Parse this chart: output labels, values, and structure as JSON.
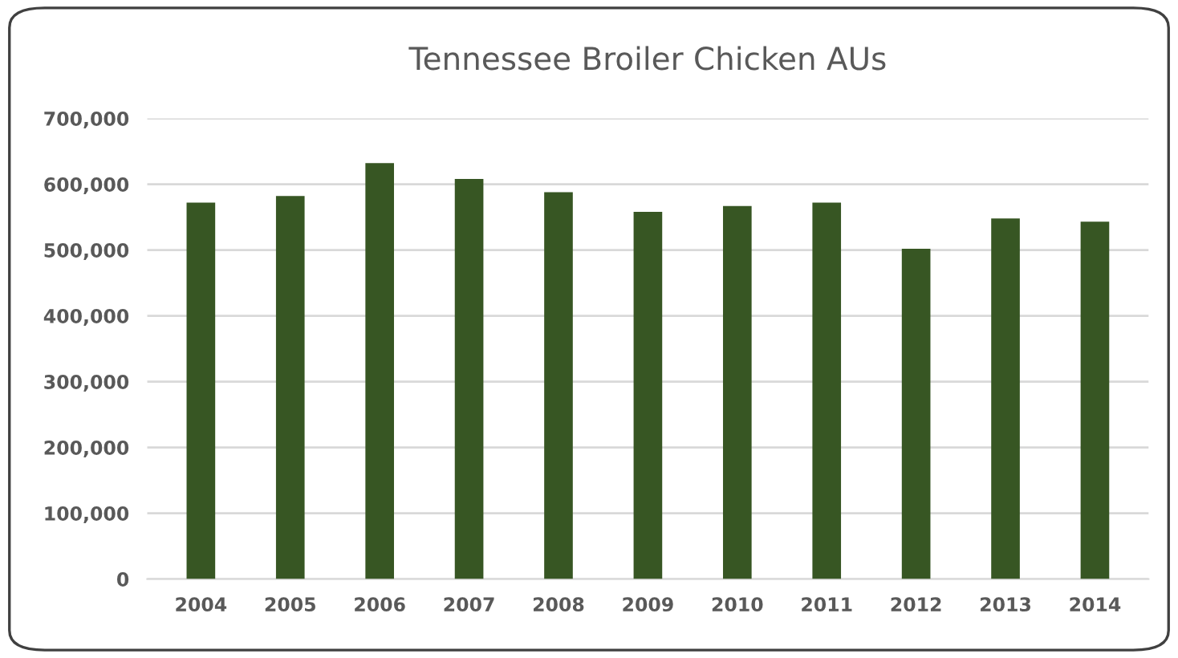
{
  "chart_data": {
    "type": "bar",
    "title": "Tennessee Broiler Chicken AUs",
    "categories": [
      "2004",
      "2005",
      "2006",
      "2007",
      "2008",
      "2009",
      "2010",
      "2011",
      "2012",
      "2013",
      "2014"
    ],
    "values": [
      572000,
      582000,
      632000,
      608000,
      588000,
      558000,
      567000,
      572000,
      502000,
      548000,
      543000
    ],
    "color": "#375623",
    "ylim": [
      0,
      700000
    ],
    "yticks": [
      {
        "value": 0,
        "label": "0"
      },
      {
        "value": 100000,
        "label": "100,000"
      },
      {
        "value": 200000,
        "label": "200,000"
      },
      {
        "value": 300000,
        "label": "300,000"
      },
      {
        "value": 400000,
        "label": "400,000"
      },
      {
        "value": 500000,
        "label": "500,000"
      },
      {
        "value": 600000,
        "label": "600,000"
      },
      {
        "value": 700000,
        "label": "700,000"
      }
    ],
    "grid": "y"
  }
}
